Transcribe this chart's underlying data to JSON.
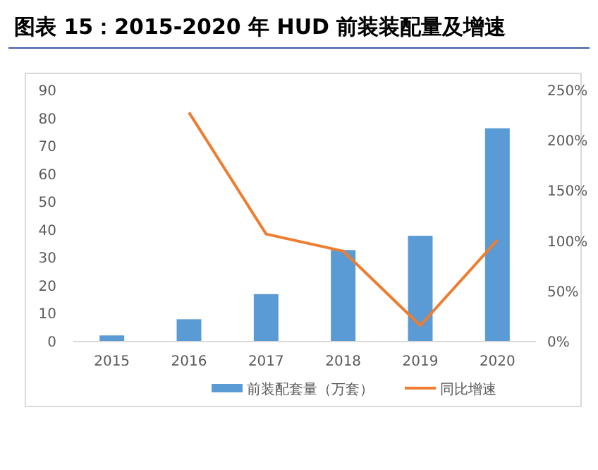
{
  "chart_data": {
    "type": "bar",
    "title": "图表 15：2015-2020 年 HUD 前装装配量及增速",
    "categories": [
      "2015",
      "2016",
      "2017",
      "2018",
      "2019",
      "2020"
    ],
    "series": [
      {
        "name": "前装配套量（万套）",
        "color": "#5b9bd5",
        "values": [
          2.2,
          8.0,
          17.0,
          32.8,
          37.9,
          76.4
        ]
      },
      {
        "name": "同比增速",
        "type": "line",
        "axis": "y2",
        "color": "#ed7d31",
        "values": [
          null,
          228,
          107,
          90,
          16,
          101
        ]
      }
    ],
    "ylim": [
      0,
      90
    ],
    "yticks": [
      0,
      10,
      20,
      30,
      40,
      50,
      60,
      70,
      80,
      90
    ],
    "y2lim": [
      0,
      250
    ],
    "y2ticks": [
      {
        "value": 0,
        "label": "0%"
      },
      {
        "value": 50,
        "label": "50%"
      },
      {
        "value": 100,
        "label": "100%"
      },
      {
        "value": 150,
        "label": "150%"
      },
      {
        "value": 200,
        "label": "200%"
      },
      {
        "value": 250,
        "label": "250%"
      }
    ],
    "grid": false,
    "legend": "bottom",
    "marker": "none",
    "line_style": "solid"
  }
}
